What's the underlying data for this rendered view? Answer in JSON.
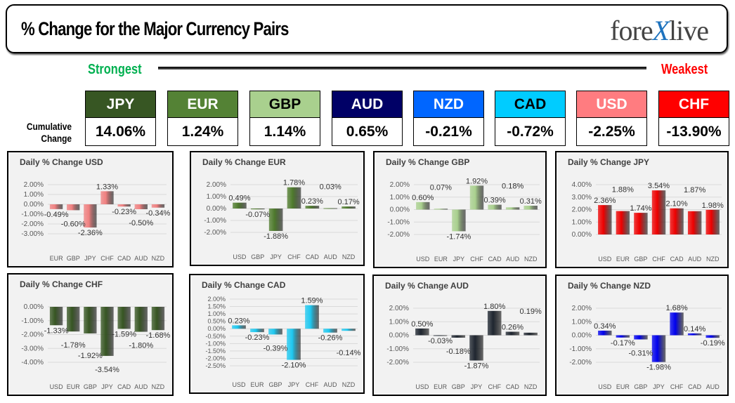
{
  "header": {
    "title": "% Change for the Major Currency Pairs",
    "logo": "forexlive"
  },
  "scale": {
    "strongest": "Strongest",
    "weakest": "Weakest"
  },
  "cumulative_label": "Cumulative Change",
  "currencies": [
    {
      "code": "JPY",
      "value": "14.06%",
      "color": "#375623",
      "text": "#ffffff"
    },
    {
      "code": "EUR",
      "value": "1.24%",
      "color": "#548235",
      "text": "#ffffff"
    },
    {
      "code": "GBP",
      "value": "1.14%",
      "color": "#a9d08e",
      "text": "#000000"
    },
    {
      "code": "AUD",
      "value": "0.65%",
      "color": "#000066",
      "text": "#ffffff"
    },
    {
      "code": "NZD",
      "value": "-0.21%",
      "color": "#0066ff",
      "text": "#ffffff"
    },
    {
      "code": "CAD",
      "value": "-0.72%",
      "color": "#00ccff",
      "text": "#000000"
    },
    {
      "code": "USD",
      "value": "-2.25%",
      "color": "#ff7c80",
      "text": "#ffffff"
    },
    {
      "code": "CHF",
      "value": "-13.90%",
      "color": "#ff0000",
      "text": "#ffffff"
    }
  ],
  "chart_data": [
    {
      "type": "bar",
      "title": "Daily % Change USD",
      "categories": [
        "EUR",
        "GBP",
        "JPY",
        "CHF",
        "CAD",
        "AUD",
        "NZD"
      ],
      "values": [
        -0.49,
        -0.6,
        -2.36,
        1.33,
        -0.23,
        -0.5,
        -0.34
      ],
      "labels": [
        "-0.49%",
        "-0.60%",
        "-2.36%",
        "1.33%",
        "-0.23%",
        "-0.50%",
        "-0.34%"
      ],
      "ylim": [
        -3,
        2
      ],
      "yticks": [
        "-3.00%",
        "-2.00%",
        "-1.00%",
        "0.00%",
        "1.00%",
        "2.00%"
      ],
      "ystep": 1,
      "color": "#f08080",
      "grid": true
    },
    {
      "type": "bar",
      "title": "Daily % Change EUR",
      "categories": [
        "USD",
        "GBP",
        "JPY",
        "CHF",
        "CAD",
        "AUD",
        "NZD"
      ],
      "values": [
        0.49,
        -0.07,
        -1.88,
        1.78,
        0.23,
        0.03,
        0.17
      ],
      "labels": [
        "0.49%",
        "-0.07%",
        "-1.88%",
        "1.78%",
        "0.23%",
        "0.03%",
        "0.17%"
      ],
      "ylim": [
        -2,
        2
      ],
      "yticks": [
        "-2.00%",
        "-1.00%",
        "0.00%",
        "1.00%",
        "2.00%"
      ],
      "ystep": 1,
      "color": "#4e7a2c",
      "grid": true
    },
    {
      "type": "bar",
      "title": "Daily % Change GBP",
      "categories": [
        "USD",
        "EUR",
        "JPY",
        "CHF",
        "CAD",
        "AUD",
        "NZD"
      ],
      "values": [
        0.6,
        0.07,
        -1.74,
        1.92,
        0.39,
        0.18,
        0.31
      ],
      "labels": [
        "0.60%",
        "0.07%",
        "-1.74%",
        "1.92%",
        "0.39%",
        "0.18%",
        "0.31%"
      ],
      "ylim": [
        -2,
        2
      ],
      "yticks": [
        "-2.00%",
        "-1.00%",
        "0.00%",
        "1.00%",
        "2.00%"
      ],
      "ystep": 1,
      "color": "#a9d08e",
      "grid": true
    },
    {
      "type": "bar",
      "title": "Daily % Change JPY",
      "categories": [
        "USD",
        "EUR",
        "GBP",
        "CHF",
        "CAD",
        "AUD",
        "NZD"
      ],
      "values": [
        2.36,
        1.88,
        1.74,
        3.54,
        2.1,
        1.87,
        1.98
      ],
      "labels": [
        "2.36%",
        "1.88%",
        "1.74%",
        "3.54%",
        "2.10%",
        "1.87%",
        "1.98%"
      ],
      "ylim": [
        0,
        4
      ],
      "yticks": [
        "0.00%",
        "1.00%",
        "2.00%",
        "3.00%",
        "4.00%"
      ],
      "ystep": 1,
      "color": "#ee0000",
      "grid": true
    },
    {
      "type": "bar",
      "title": "Daily % Change CHF",
      "categories": [
        "USD",
        "EUR",
        "GBP",
        "JPY",
        "CAD",
        "AUD",
        "NZD"
      ],
      "values": [
        -1.33,
        -1.78,
        -1.92,
        -3.54,
        -1.59,
        -1.8,
        -1.68
      ],
      "labels": [
        "-1.33%",
        "-1.78%",
        "-1.92%",
        "-3.54%",
        "-1.59%",
        "-1.80%",
        "-1.68%"
      ],
      "ylim": [
        -4,
        0
      ],
      "yticks": [
        "-4.00%",
        "-3.00%",
        "-2.00%",
        "-1.00%",
        "0.00%"
      ],
      "ystep": 1,
      "color": "#375623",
      "grid": true
    },
    {
      "type": "bar",
      "title": "Daily % Change CAD",
      "categories": [
        "USD",
        "EUR",
        "GBP",
        "JPY",
        "CHF",
        "AUD",
        "NZD"
      ],
      "values": [
        0.23,
        -0.23,
        -0.39,
        -2.1,
        1.59,
        -0.26,
        -0.14
      ],
      "labels": [
        "0.23%",
        "-0.23%",
        "-0.39%",
        "-2.10%",
        "1.59%",
        "-0.26%",
        "-0.14%"
      ],
      "ylim": [
        -2.5,
        2
      ],
      "yticks": [
        "-2.50%",
        "-2.00%",
        "-1.50%",
        "-1.00%",
        "-0.50%",
        "0.00%",
        "0.50%",
        "1.00%",
        "1.50%",
        "2.00%"
      ],
      "ystep": 0.5,
      "color": "#1ec8f0",
      "grid": true
    },
    {
      "type": "bar",
      "title": "Daily % Change AUD",
      "categories": [
        "USD",
        "EUR",
        "GBP",
        "JPY",
        "CHF",
        "CAD",
        "NZD"
      ],
      "values": [
        0.5,
        -0.03,
        -0.18,
        -1.87,
        1.8,
        0.26,
        0.19
      ],
      "labels": [
        "0.50%",
        "-0.03%",
        "-0.18%",
        "-1.87%",
        "1.80%",
        "0.26%",
        "0.19%"
      ],
      "ylim": [
        -2,
        2
      ],
      "yticks": [
        "-2.00%",
        "-1.00%",
        "0.00%",
        "1.00%",
        "2.00%"
      ],
      "ystep": 1,
      "color": "#1f2630",
      "grid": true
    },
    {
      "type": "bar",
      "title": "Daily % Change NZD",
      "categories": [
        "USD",
        "EUR",
        "GBP",
        "JPY",
        "CHF",
        "CAD",
        "AUD"
      ],
      "values": [
        0.34,
        -0.17,
        -0.31,
        -1.98,
        1.68,
        0.14,
        -0.19
      ],
      "labels": [
        "0.34%",
        "-0.17%",
        "-0.31%",
        "-1.98%",
        "1.68%",
        "0.14%",
        "-0.19%"
      ],
      "ylim": [
        -2,
        2
      ],
      "yticks": [
        "-2.00%",
        "-1.00%",
        "0.00%",
        "1.00%",
        "2.00%"
      ],
      "ystep": 1,
      "color": "#0000ee",
      "grid": true
    }
  ]
}
